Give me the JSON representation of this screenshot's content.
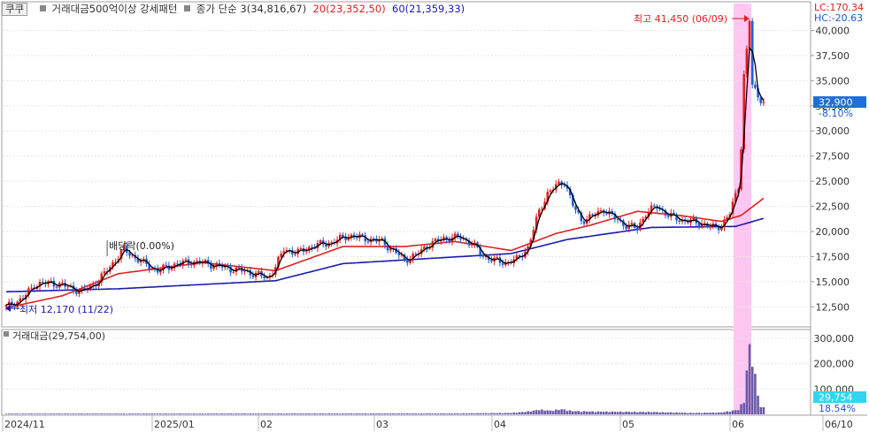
{
  "header": {
    "ticker": "쿠쿠",
    "pattern_label": "거래대금500억이상 강세패턴",
    "close_ma_label": "종가 단순 3(34,816,67)",
    "ma20_label": "20(23,352,50)",
    "ma60_label": "60(21,359,33)"
  },
  "right_info": {
    "lc": "LC:170.34",
    "hc": "HC:-20.63",
    "current_price": "32,900",
    "current_change": "-8.10%",
    "volume_value": "29,754",
    "volume_change": "18.54%"
  },
  "annotations": {
    "high": "최고 41,450 (06/09)",
    "low": "최저 12,170 (11/22)",
    "dividend": "배당락(0.00%)"
  },
  "volume_panel": {
    "label": "거래대금(29,754,00)"
  },
  "x_axis_labels": [
    "2024/11",
    "2025/01",
    "02",
    "03",
    "04",
    "05",
    "06",
    "06/10"
  ],
  "colors": {
    "up": "#e02020",
    "down": "#2060d0",
    "ma_close": "#000000",
    "ma20": "#e02020",
    "ma60": "#1a1ab0",
    "highlight": "#ffc6f2",
    "volume_bar": "#6a5aa8",
    "price_badge": "#1f6fd8",
    "volume_badge": "#33d4f2"
  },
  "chart_data": {
    "type": "candlestick",
    "y_axis": {
      "ticks": [
        12500,
        15000,
        17500,
        20000,
        22500,
        25000,
        27500,
        30000,
        32500,
        35000,
        37500,
        40000
      ],
      "labels": [
        "12,500",
        "15,000",
        "17,500",
        "20,000",
        "22,500",
        "25,000",
        "27,500",
        "30,000",
        "32,500",
        "35,000",
        "37,500",
        "40,000"
      ]
    },
    "volume_axis": {
      "ticks": [
        100000,
        200000,
        300000
      ],
      "labels": [
        "100,000",
        "200,000",
        "300,000"
      ]
    },
    "price_anchors": [
      [
        0,
        12500
      ],
      [
        6,
        13300
      ],
      [
        10,
        14700
      ],
      [
        16,
        14900
      ],
      [
        22,
        14500
      ],
      [
        27,
        14000
      ],
      [
        33,
        15100
      ],
      [
        37,
        16500
      ],
      [
        42,
        18200
      ],
      [
        48,
        17000
      ],
      [
        54,
        16100
      ],
      [
        60,
        16700
      ],
      [
        66,
        17000
      ],
      [
        72,
        16800
      ],
      [
        78,
        16400
      ],
      [
        84,
        16100
      ],
      [
        90,
        15700
      ],
      [
        93,
        15300
      ],
      [
        96,
        16500
      ],
      [
        99,
        18200
      ],
      [
        104,
        17900
      ],
      [
        110,
        18600
      ],
      [
        116,
        18900
      ],
      [
        122,
        19600
      ],
      [
        128,
        19300
      ],
      [
        134,
        19000
      ],
      [
        138,
        18100
      ],
      [
        142,
        17200
      ],
      [
        146,
        17600
      ],
      [
        150,
        18600
      ],
      [
        156,
        19300
      ],
      [
        162,
        19400
      ],
      [
        166,
        18800
      ],
      [
        170,
        17600
      ],
      [
        174,
        17100
      ],
      [
        178,
        16900
      ],
      [
        182,
        17200
      ],
      [
        186,
        18400
      ],
      [
        190,
        22000
      ],
      [
        193,
        23800
      ],
      [
        196,
        24500
      ],
      [
        199,
        25000
      ],
      [
        202,
        22600
      ],
      [
        205,
        21100
      ],
      [
        209,
        21500
      ],
      [
        213,
        22200
      ],
      [
        217,
        21300
      ],
      [
        221,
        20600
      ],
      [
        225,
        20300
      ],
      [
        228,
        21800
      ],
      [
        232,
        22500
      ],
      [
        236,
        21600
      ],
      [
        240,
        21200
      ],
      [
        244,
        21000
      ],
      [
        248,
        20800
      ],
      [
        252,
        20400
      ],
      [
        255,
        20600
      ],
      [
        258,
        21800
      ],
      [
        261,
        24500
      ],
      [
        262,
        28500
      ],
      [
        263,
        35500
      ],
      [
        264,
        38000
      ],
      [
        265,
        41000
      ],
      [
        266,
        34500
      ],
      [
        268,
        33500
      ],
      [
        270,
        32900
      ]
    ],
    "volume_anchors": [
      [
        0,
        3
      ],
      [
        160,
        4
      ],
      [
        180,
        6
      ],
      [
        186,
        12
      ],
      [
        190,
        20
      ],
      [
        194,
        16
      ],
      [
        198,
        22
      ],
      [
        202,
        14
      ],
      [
        210,
        12
      ],
      [
        230,
        10
      ],
      [
        245,
        6
      ],
      [
        255,
        8
      ],
      [
        261,
        20
      ],
      [
        263,
        60
      ],
      [
        265,
        300
      ],
      [
        267,
        160
      ],
      [
        269,
        30
      ]
    ],
    "ma20_anchors": [
      [
        0,
        12400
      ],
      [
        20,
        13600
      ],
      [
        40,
        15800
      ],
      [
        70,
        16900
      ],
      [
        96,
        16100
      ],
      [
        120,
        18500
      ],
      [
        142,
        18500
      ],
      [
        160,
        19000
      ],
      [
        180,
        18100
      ],
      [
        196,
        19800
      ],
      [
        208,
        20600
      ],
      [
        225,
        22000
      ],
      [
        240,
        21600
      ],
      [
        255,
        21000
      ],
      [
        262,
        21600
      ],
      [
        270,
        23300
      ]
    ],
    "ma60_anchors": [
      [
        0,
        14000
      ],
      [
        40,
        14300
      ],
      [
        96,
        15100
      ],
      [
        120,
        16800
      ],
      [
        150,
        17300
      ],
      [
        180,
        17800
      ],
      [
        200,
        19200
      ],
      [
        230,
        20400
      ],
      [
        260,
        20500
      ],
      [
        270,
        21300
      ]
    ],
    "dividend_index": 36,
    "low_index": 0,
    "high_index": 265
  }
}
